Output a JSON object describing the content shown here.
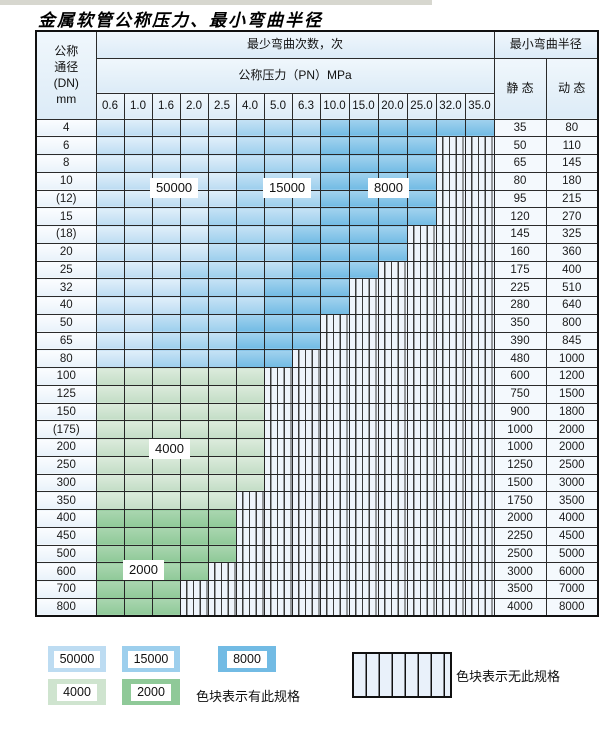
{
  "page": {
    "title": "金属软管公称压力、最小弯曲半径"
  },
  "table": {
    "header": {
      "dn_label_lines": [
        "公称",
        "通径",
        "(DN)",
        "mm"
      ],
      "bend_count_label": "最少弯曲次数，次",
      "pressure_label": "公称压力（PN）MPa",
      "radius_label": "最小弯曲半径",
      "static_label": "静 态",
      "dynamic_label": "动 态",
      "pressures": [
        "0.6",
        "1.0",
        "1.6",
        "2.0",
        "2.5",
        "4.0",
        "5.0",
        "6.3",
        "10.0",
        "15.0",
        "20.0",
        "25.0",
        "32.0",
        "35.0"
      ]
    },
    "rows": [
      {
        "dn": "4",
        "bands": [
          [
            "50000",
            5
          ],
          [
            "15000",
            3
          ],
          [
            "8000",
            6
          ]
        ],
        "static": "35",
        "dynamic": "80"
      },
      {
        "dn": "6",
        "bands": [
          [
            "50000",
            5
          ],
          [
            "15000",
            3
          ],
          [
            "8000",
            4
          ],
          [
            "none",
            2
          ]
        ],
        "static": "50",
        "dynamic": "110"
      },
      {
        "dn": "8",
        "bands": [
          [
            "50000",
            5
          ],
          [
            "15000",
            3
          ],
          [
            "8000",
            4
          ],
          [
            "none",
            2
          ]
        ],
        "static": "65",
        "dynamic": "145"
      },
      {
        "dn": "10",
        "bands": [
          [
            "50000",
            5
          ],
          [
            "15000",
            3
          ],
          [
            "8000",
            4
          ],
          [
            "none",
            2
          ]
        ],
        "static": "80",
        "dynamic": "180"
      },
      {
        "dn": "(12)",
        "bands": [
          [
            "50000",
            5
          ],
          [
            "15000",
            3
          ],
          [
            "8000",
            4
          ],
          [
            "none",
            2
          ]
        ],
        "static": "95",
        "dynamic": "215"
      },
      {
        "dn": "15",
        "bands": [
          [
            "50000",
            4
          ],
          [
            "15000",
            4
          ],
          [
            "8000",
            4
          ],
          [
            "none",
            2
          ]
        ],
        "static": "120",
        "dynamic": "270"
      },
      {
        "dn": "(18)",
        "bands": [
          [
            "50000",
            4
          ],
          [
            "15000",
            3
          ],
          [
            "8000",
            4
          ],
          [
            "none",
            3
          ]
        ],
        "static": "145",
        "dynamic": "325"
      },
      {
        "dn": "20",
        "bands": [
          [
            "50000",
            4
          ],
          [
            "15000",
            3
          ],
          [
            "8000",
            4
          ],
          [
            "none",
            3
          ]
        ],
        "static": "160",
        "dynamic": "360"
      },
      {
        "dn": "25",
        "bands": [
          [
            "50000",
            3
          ],
          [
            "15000",
            4
          ],
          [
            "8000",
            3
          ],
          [
            "none",
            4
          ]
        ],
        "static": "175",
        "dynamic": "400"
      },
      {
        "dn": "32",
        "bands": [
          [
            "50000",
            3
          ],
          [
            "15000",
            3
          ],
          [
            "8000",
            3
          ],
          [
            "none",
            5
          ]
        ],
        "static": "225",
        "dynamic": "510"
      },
      {
        "dn": "40",
        "bands": [
          [
            "50000",
            3
          ],
          [
            "15000",
            3
          ],
          [
            "8000",
            3
          ],
          [
            "none",
            5
          ]
        ],
        "static": "280",
        "dynamic": "640"
      },
      {
        "dn": "50",
        "bands": [
          [
            "50000",
            2
          ],
          [
            "15000",
            3
          ],
          [
            "8000",
            3
          ],
          [
            "none",
            6
          ]
        ],
        "static": "350",
        "dynamic": "800"
      },
      {
        "dn": "65",
        "bands": [
          [
            "50000",
            2
          ],
          [
            "15000",
            3
          ],
          [
            "8000",
            3
          ],
          [
            "none",
            6
          ]
        ],
        "static": "390",
        "dynamic": "845"
      },
      {
        "dn": "80",
        "bands": [
          [
            "50000",
            2
          ],
          [
            "15000",
            3
          ],
          [
            "8000",
            2
          ],
          [
            "none",
            7
          ]
        ],
        "static": "480",
        "dynamic": "1000"
      },
      {
        "dn": "100",
        "bands": [
          [
            "4000",
            6
          ],
          [
            "none",
            8
          ]
        ],
        "static": "600",
        "dynamic": "1200"
      },
      {
        "dn": "125",
        "bands": [
          [
            "4000",
            6
          ],
          [
            "none",
            8
          ]
        ],
        "static": "750",
        "dynamic": "1500"
      },
      {
        "dn": "150",
        "bands": [
          [
            "4000",
            6
          ],
          [
            "none",
            8
          ]
        ],
        "static": "900",
        "dynamic": "1800"
      },
      {
        "dn": "(175)",
        "bands": [
          [
            "4000",
            6
          ],
          [
            "none",
            8
          ]
        ],
        "static": "1000",
        "dynamic": "2000"
      },
      {
        "dn": "200",
        "bands": [
          [
            "4000",
            6
          ],
          [
            "none",
            8
          ]
        ],
        "static": "1000",
        "dynamic": "2000"
      },
      {
        "dn": "250",
        "bands": [
          [
            "4000",
            6
          ],
          [
            "none",
            8
          ]
        ],
        "static": "1250",
        "dynamic": "2500"
      },
      {
        "dn": "300",
        "bands": [
          [
            "4000",
            6
          ],
          [
            "none",
            8
          ]
        ],
        "static": "1500",
        "dynamic": "3000"
      },
      {
        "dn": "350",
        "bands": [
          [
            "4000",
            5
          ],
          [
            "none",
            9
          ]
        ],
        "static": "1750",
        "dynamic": "3500"
      },
      {
        "dn": "400",
        "bands": [
          [
            "2000",
            5
          ],
          [
            "none",
            9
          ]
        ],
        "static": "2000",
        "dynamic": "4000"
      },
      {
        "dn": "450",
        "bands": [
          [
            "2000",
            5
          ],
          [
            "none",
            9
          ]
        ],
        "static": "2250",
        "dynamic": "4500"
      },
      {
        "dn": "500",
        "bands": [
          [
            "2000",
            5
          ],
          [
            "none",
            9
          ]
        ],
        "static": "2500",
        "dynamic": "5000"
      },
      {
        "dn": "600",
        "bands": [
          [
            "2000",
            4
          ],
          [
            "none",
            10
          ]
        ],
        "static": "3000",
        "dynamic": "6000"
      },
      {
        "dn": "700",
        "bands": [
          [
            "2000",
            3
          ],
          [
            "none",
            11
          ]
        ],
        "static": "3500",
        "dynamic": "7000"
      },
      {
        "dn": "800",
        "bands": [
          [
            "2000",
            3
          ],
          [
            "none",
            11
          ]
        ],
        "static": "4000",
        "dynamic": "8000"
      }
    ]
  },
  "overlay_labels": {
    "l50000": "50000",
    "l15000": "15000",
    "l8000": "8000",
    "l4000": "4000",
    "l2000": "2000"
  },
  "legend": {
    "b50000": "50000",
    "b15000": "15000",
    "b8000": "8000",
    "b4000": "4000",
    "b2000": "2000",
    "has_spec_text": "色块表示有此规格",
    "no_spec_text": "色块表示无此规格"
  },
  "colors": {
    "bend_50000": "#bddcf2",
    "bend_15000": "#9dcfed",
    "bend_8000": "#72bbe4",
    "bend_4000": "#cfe4cf",
    "bend_2000": "#8fc998",
    "no_spec_hatch_bg": "#eef4fb",
    "grid_line": "#2b2b2b",
    "header_bg": "#dcebf7"
  }
}
